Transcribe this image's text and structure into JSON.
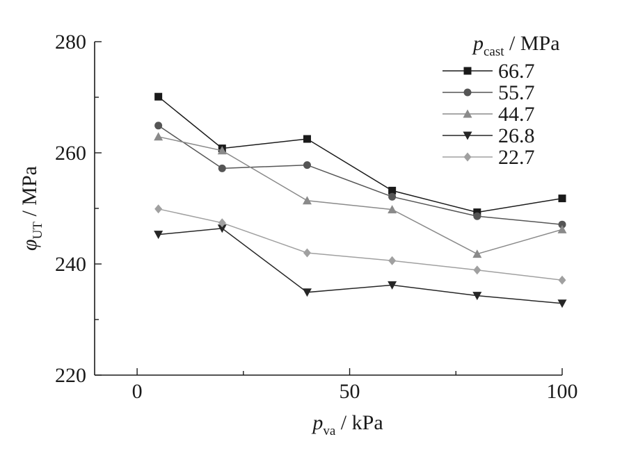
{
  "chart_data": {
    "type": "line",
    "xlabel": {
      "var": "p",
      "sub": "va",
      "unit": " / kPa"
    },
    "ylabel": {
      "var": "φ",
      "sub": "UT",
      "unit": " / MPa"
    },
    "xlim": [
      -10,
      100
    ],
    "ylim": [
      220,
      280
    ],
    "x_ticks": [
      0,
      50,
      100
    ],
    "y_ticks": [
      220,
      240,
      260,
      280
    ],
    "grid": false,
    "legend": {
      "title": {
        "var": "p",
        "sub": "cast",
        "unit": " / MPa"
      },
      "placement": "top-right"
    },
    "x": [
      5,
      20,
      40,
      60,
      80,
      100
    ],
    "series": [
      {
        "name": "66.7",
        "marker": "square",
        "color": "#1a1a1a",
        "values": [
          270.1,
          260.8,
          262.5,
          253.2,
          249.3,
          251.8
        ]
      },
      {
        "name": "55.7",
        "marker": "circle",
        "color": "#555555",
        "values": [
          264.9,
          257.2,
          257.8,
          252.1,
          248.6,
          247.1
        ]
      },
      {
        "name": "44.7",
        "marker": "triangle-up",
        "color": "#8a8a8a",
        "values": [
          262.9,
          260.4,
          251.4,
          249.8,
          241.8,
          246.2
        ]
      },
      {
        "name": "26.8",
        "marker": "triangle-down",
        "color": "#262626",
        "values": [
          245.3,
          246.4,
          234.9,
          236.2,
          234.3,
          232.9
        ]
      },
      {
        "name": "22.7",
        "marker": "diamond",
        "color": "#a0a0a0",
        "values": [
          249.9,
          247.4,
          242.0,
          240.6,
          238.9,
          237.1
        ]
      }
    ]
  }
}
